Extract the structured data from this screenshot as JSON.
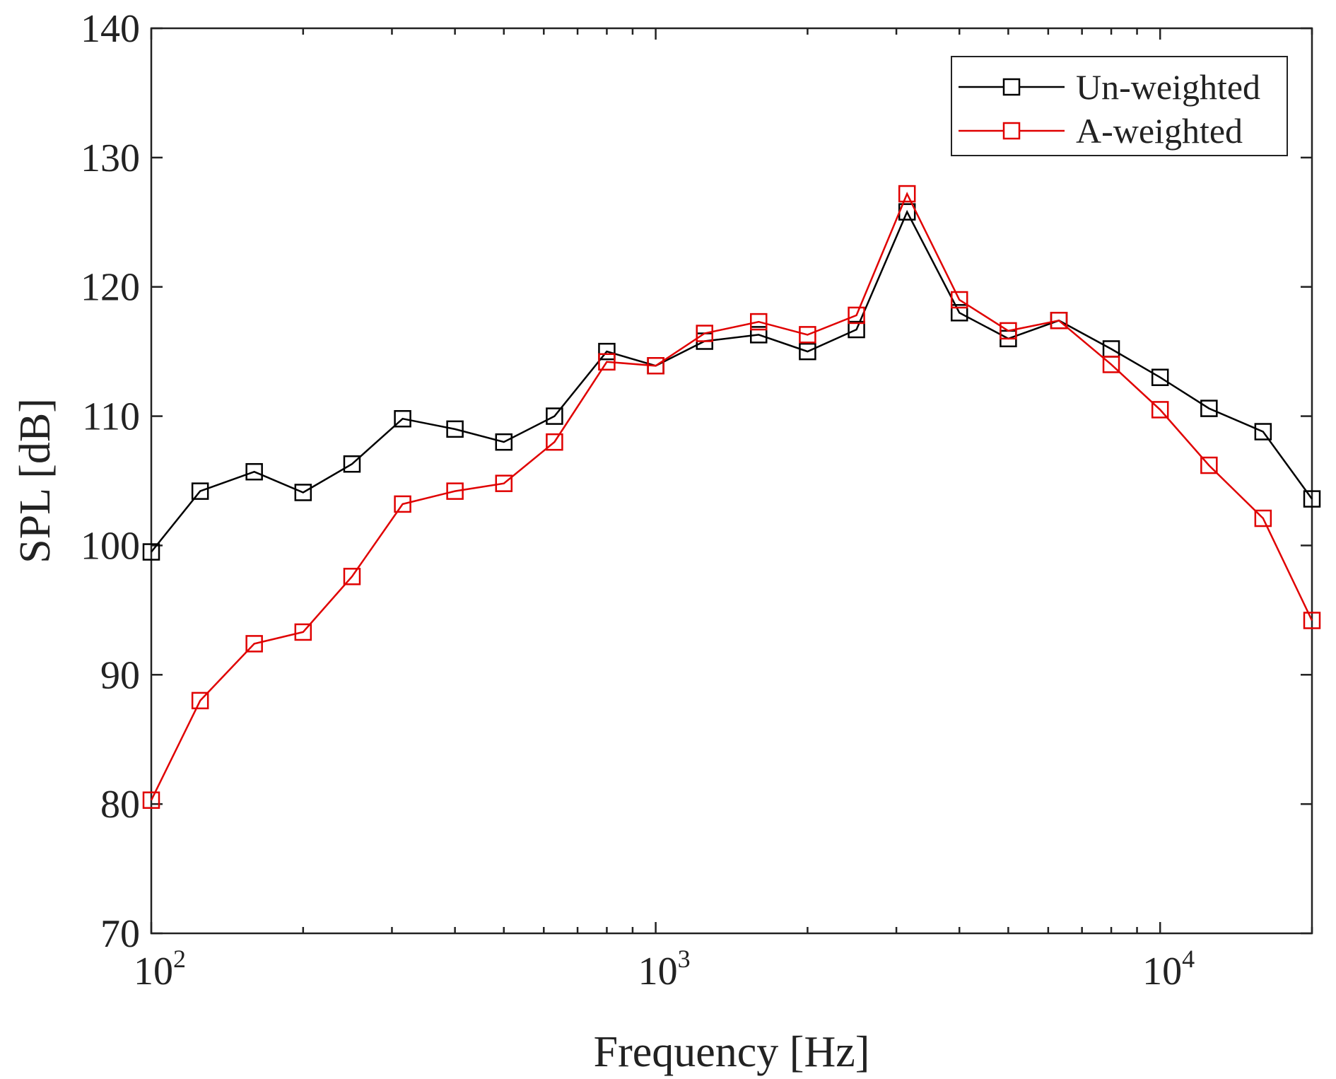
{
  "chart_data": {
    "type": "line",
    "title": "",
    "xlabel": "Frequency [Hz]",
    "ylabel": "SPL [dB]",
    "xscale": "log",
    "xlim": [
      100,
      20000
    ],
    "ylim": [
      70,
      140
    ],
    "yticks": [
      70,
      80,
      90,
      100,
      110,
      120,
      130,
      140
    ],
    "xticks": [
      {
        "value": 100,
        "base": "10",
        "exponent": "2"
      },
      {
        "value": 1000,
        "base": "10",
        "exponent": "3"
      },
      {
        "value": 10000,
        "base": "10",
        "exponent": "4"
      }
    ],
    "grid": false,
    "legend_position": "top-right",
    "x": [
      100,
      125,
      160,
      200,
      250,
      315,
      400,
      500,
      630,
      800,
      1000,
      1250,
      1600,
      2000,
      2500,
      3150,
      4000,
      5000,
      6300,
      8000,
      10000,
      12500,
      16000,
      20000
    ],
    "series": [
      {
        "name": "Un-weighted",
        "color": "#000000",
        "marker": "square",
        "values": [
          99.5,
          104.2,
          105.7,
          104.1,
          106.3,
          109.8,
          109.0,
          108.0,
          110.0,
          115.0,
          113.9,
          115.8,
          116.3,
          115.0,
          116.7,
          125.8,
          118.0,
          116.0,
          117.4,
          115.2,
          113.0,
          110.6,
          108.8,
          103.6
        ]
      },
      {
        "name": "A-weighted",
        "color": "#e00000",
        "marker": "square",
        "values": [
          80.3,
          88.0,
          92.4,
          93.3,
          97.6,
          103.2,
          104.2,
          104.8,
          108.0,
          114.2,
          113.9,
          116.4,
          117.3,
          116.3,
          117.8,
          127.2,
          119.0,
          116.6,
          117.4,
          114.0,
          110.5,
          106.2,
          102.1,
          94.2
        ]
      }
    ]
  }
}
